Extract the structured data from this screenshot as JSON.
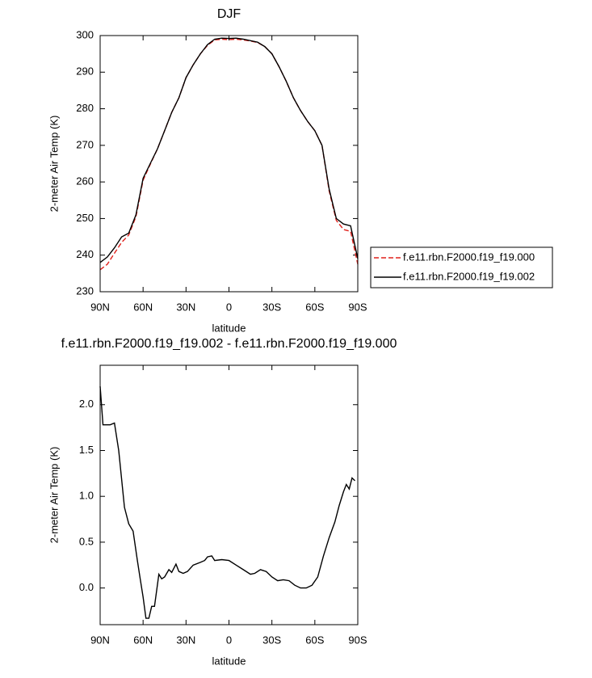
{
  "chart_data": [
    {
      "type": "line",
      "title": "DJF",
      "xlabel": "latitude",
      "ylabel": "2-meter Air Temp (K)",
      "x": [
        90,
        85,
        80,
        75,
        70,
        65,
        60,
        55,
        50,
        45,
        40,
        35,
        30,
        25,
        20,
        15,
        10,
        5,
        0,
        -5,
        -10,
        -15,
        -20,
        -25,
        -30,
        -35,
        -40,
        -45,
        -50,
        -55,
        -60,
        -65,
        -70,
        -75,
        -80,
        -85,
        -90
      ],
      "series": [
        {
          "name": "f.e11.rbn.F2000.f19_f19.000",
          "color": "#e0201b",
          "linestyle": "dashed",
          "values": [
            236,
            237.5,
            240.5,
            243.5,
            245.5,
            250.5,
            260.5,
            264.8,
            269,
            274,
            279,
            283,
            288.5,
            292,
            295,
            297.3,
            298.8,
            299,
            298.9,
            299,
            298.8,
            298.5,
            298.1,
            297,
            295,
            291.5,
            287.5,
            283,
            279.5,
            276.5,
            274,
            270,
            257.5,
            249.5,
            247,
            246.5,
            237.5
          ]
        },
        {
          "name": "f.e11.rbn.F2000.f19_f19.002",
          "color": "#000000",
          "linestyle": "solid",
          "values": [
            238,
            239.5,
            242,
            245,
            246,
            251,
            261,
            265,
            269,
            274,
            279,
            283,
            288.5,
            292,
            295,
            297.5,
            299,
            299.3,
            299.2,
            299.3,
            299,
            298.6,
            298.2,
            297,
            295,
            291.5,
            287.5,
            283,
            279.5,
            276.5,
            274,
            270,
            258,
            250,
            248.5,
            248,
            239
          ]
        }
      ],
      "xlim": [
        90,
        -90
      ],
      "xticks": [
        {
          "value": 90,
          "label": "90N"
        },
        {
          "value": 60,
          "label": "60N"
        },
        {
          "value": 30,
          "label": "30N"
        },
        0,
        {
          "value": -30,
          "label": "30S"
        },
        {
          "value": -60,
          "label": "60S"
        },
        {
          "value": -90,
          "label": "90S"
        }
      ],
      "ylim": [
        230,
        300
      ],
      "yticks": [
        230,
        240,
        250,
        260,
        270,
        280,
        290,
        300
      ],
      "legend": "right"
    },
    {
      "type": "line",
      "title": "f.e11.rbn.F2000.f19_f19.002 - f.e11.rbn.F2000.f19_f19.000",
      "xlabel": "latitude",
      "ylabel": "2-meter Air Temp (K)",
      "x": [
        90,
        88,
        83,
        80,
        77,
        73,
        70,
        67,
        64,
        62,
        60,
        58,
        56,
        54,
        52,
        49,
        47,
        45,
        42,
        40,
        37,
        35,
        32,
        29,
        25,
        20,
        17,
        15,
        12,
        10,
        5,
        0,
        -5,
        -10,
        -15,
        -18,
        -22,
        -26,
        -30,
        -34,
        -38,
        -42,
        -46,
        -50,
        -54,
        -58,
        -62,
        -66,
        -70,
        -74,
        -77,
        -80,
        -82,
        -84,
        -86,
        -88
      ],
      "series": [
        {
          "name": null,
          "color": "#000000",
          "linestyle": "solid",
          "values": [
            2.2,
            1.78,
            1.78,
            1.8,
            1.5,
            0.88,
            0.7,
            0.62,
            0.3,
            0.1,
            -0.1,
            -0.33,
            -0.33,
            -0.2,
            -0.2,
            0.15,
            0.1,
            0.12,
            0.2,
            0.17,
            0.26,
            0.18,
            0.16,
            0.18,
            0.25,
            0.28,
            0.3,
            0.34,
            0.35,
            0.3,
            0.31,
            0.3,
            0.25,
            0.2,
            0.15,
            0.16,
            0.2,
            0.18,
            0.12,
            0.08,
            0.09,
            0.08,
            0.03,
            0.0,
            0.0,
            0.03,
            0.12,
            0.35,
            0.55,
            0.72,
            0.9,
            1.05,
            1.13,
            1.08,
            1.2,
            1.17
          ]
        }
      ],
      "xlim": [
        90,
        -90
      ],
      "xticks": [
        {
          "value": 90,
          "label": "90N"
        },
        {
          "value": 60,
          "label": "60N"
        },
        {
          "value": 30,
          "label": "30N"
        },
        0,
        {
          "value": -30,
          "label": "30S"
        },
        {
          "value": -60,
          "label": "60S"
        },
        {
          "value": -90,
          "label": "90S"
        }
      ],
      "ylim": [
        -0.4,
        2.43
      ],
      "yticks": [
        {
          "value": 0,
          "label": "0.0"
        },
        0.5,
        {
          "value": 1,
          "label": "1.0"
        },
        1.5,
        {
          "value": 2,
          "label": "2.0"
        }
      ]
    }
  ]
}
